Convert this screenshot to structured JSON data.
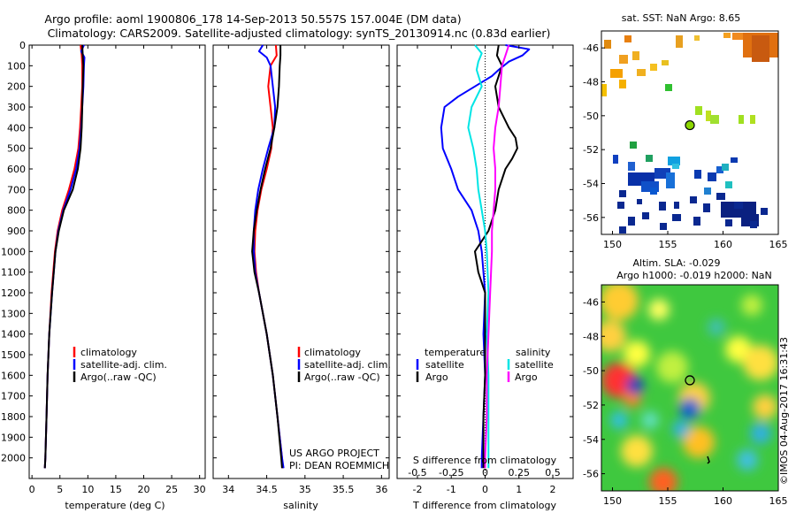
{
  "header": {
    "line1": "Argo profile: aoml 1900806_178 14-Sep-2013 50.557S 157.004E (DM data)",
    "line2": "Climatology: CARS2009. Satellite-adjusted climatology: synTS_20130914.nc (0.83d earlier)"
  },
  "credit": {
    "project": "US ARGO PROJECT",
    "pi": "PI: DEAN ROEMMICH",
    "timestamp": "©IMOS 04-Aug-2017 16:31:43"
  },
  "colors": {
    "climatology": "#ff0000",
    "satellite": "#0000ff",
    "argo": "#000000",
    "s_satellite": "#00e5e5",
    "s_argo": "#ff00ff"
  },
  "chart_data": [
    {
      "id": "temperature",
      "type": "line",
      "xlabel": "temperature (deg C)",
      "ylabel": "",
      "xlim": [
        -0.5,
        31
      ],
      "ylim": [
        2100,
        0
      ],
      "xticks": [
        0,
        5,
        10,
        15,
        20,
        25,
        30
      ],
      "yticks": [
        0,
        100,
        200,
        300,
        400,
        500,
        600,
        700,
        800,
        900,
        1000,
        1100,
        1200,
        1300,
        1400,
        1500,
        1600,
        1700,
        1800,
        1900,
        2000
      ],
      "legend": [
        "climatology",
        "satellite-adj. clim.",
        "Argo(..raw -QC)"
      ],
      "series": [
        {
          "name": "climatology",
          "color": "#ff0000",
          "depth": [
            0,
            50,
            100,
            200,
            300,
            400,
            500,
            600,
            700,
            800,
            900,
            1000,
            1200,
            1400,
            1600,
            1800,
            2000,
            2050
          ],
          "values": [
            8.7,
            8.9,
            9.0,
            9.0,
            8.8,
            8.6,
            8.3,
            7.6,
            6.6,
            5.4,
            4.6,
            4.1,
            3.5,
            3.1,
            2.8,
            2.6,
            2.4,
            2.3
          ]
        },
        {
          "name": "satellite",
          "color": "#0000ff",
          "depth": [
            0,
            30,
            60,
            100,
            200,
            300,
            400,
            500,
            600,
            700,
            800,
            900,
            1000,
            1200,
            1400,
            1600,
            1800,
            2000,
            2050
          ],
          "values": [
            9.3,
            8.8,
            9.4,
            9.3,
            9.2,
            9.0,
            8.8,
            8.5,
            7.9,
            6.9,
            5.6,
            4.7,
            4.2,
            3.6,
            3.1,
            2.8,
            2.6,
            2.4,
            2.3
          ]
        },
        {
          "name": "argo",
          "color": "#000000",
          "depth": [
            0,
            50,
            100,
            200,
            300,
            400,
            500,
            600,
            700,
            800,
            900,
            1000,
            1200,
            1400,
            1600,
            1800,
            2000,
            2050
          ],
          "values": [
            9.0,
            9.1,
            9.2,
            9.1,
            9.0,
            8.9,
            8.7,
            8.2,
            7.3,
            5.7,
            4.8,
            4.2,
            3.6,
            3.1,
            2.8,
            2.6,
            2.4,
            2.3
          ]
        }
      ]
    },
    {
      "id": "salinity",
      "type": "line",
      "xlabel": "salinity",
      "ylabel": "",
      "xlim": [
        33.8,
        36.1
      ],
      "ylim": [
        2100,
        0
      ],
      "xticks": [
        34,
        34.5,
        35,
        35.5,
        36
      ],
      "legend": [
        "climatology",
        "satellite-adj. clim.",
        "Argo(..raw -QC)"
      ],
      "series": [
        {
          "name": "climatology",
          "color": "#ff0000",
          "depth": [
            0,
            50,
            100,
            200,
            300,
            400,
            500,
            600,
            700,
            800,
            900,
            1000,
            1100,
            1200,
            1400,
            1600,
            1800,
            2000,
            2050
          ],
          "values": [
            34.62,
            34.63,
            34.55,
            34.52,
            34.55,
            34.58,
            34.56,
            34.5,
            34.43,
            34.38,
            34.35,
            34.34,
            34.36,
            34.4,
            34.5,
            34.58,
            34.64,
            34.7,
            34.71
          ]
        },
        {
          "name": "satellite",
          "color": "#0000ff",
          "depth": [
            0,
            30,
            60,
            100,
            200,
            300,
            400,
            500,
            600,
            700,
            800,
            900,
            1000,
            1100,
            1200,
            1400,
            1600,
            1800,
            2000,
            2050
          ],
          "values": [
            34.45,
            34.4,
            34.5,
            34.55,
            34.58,
            34.61,
            34.6,
            34.52,
            34.45,
            34.39,
            34.35,
            34.33,
            34.33,
            34.35,
            34.4,
            34.5,
            34.58,
            34.64,
            34.7,
            34.72
          ]
        },
        {
          "name": "argo",
          "color": "#000000",
          "depth": [
            0,
            50,
            100,
            200,
            300,
            400,
            500,
            600,
            700,
            800,
            900,
            1000,
            1100,
            1200,
            1400,
            1600,
            1800,
            2000,
            2050
          ],
          "values": [
            34.68,
            34.68,
            34.67,
            34.66,
            34.64,
            34.6,
            34.55,
            34.48,
            34.42,
            34.37,
            34.33,
            34.31,
            34.34,
            34.4,
            34.5,
            34.58,
            34.64,
            34.69,
            34.7
          ]
        }
      ]
    },
    {
      "id": "differences",
      "type": "line",
      "xlabel_bottom": "T difference from climatology",
      "xlabel_top": "S difference from climatology",
      "xlim": [
        -2.6,
        2.6
      ],
      "ylim": [
        2100,
        0
      ],
      "xticks_bottom": [
        -2,
        -1,
        0,
        1,
        2
      ],
      "xticks_top_labels": [
        "-0.5",
        "-0.25",
        "0",
        "0.25",
        "0.5"
      ],
      "xticks_top_values": [
        -2,
        -1,
        0,
        1,
        2
      ],
      "legend_temperature": {
        "title": "temperature",
        "items": [
          "satellite",
          "Argo"
        ]
      },
      "legend_salinity": {
        "title": "salinity",
        "items": [
          "satellite",
          "Argo"
        ]
      },
      "series": [
        {
          "name": "T satellite",
          "color": "#0000ff",
          "depth": [
            0,
            20,
            50,
            80,
            120,
            150,
            200,
            250,
            300,
            400,
            500,
            600,
            700,
            800,
            900,
            1000,
            1200,
            1400,
            1600,
            1800,
            2000,
            2050
          ],
          "values": [
            0.6,
            1.3,
            1.1,
            0.7,
            0.4,
            0.2,
            -0.3,
            -0.8,
            -1.2,
            -1.3,
            -1.25,
            -1.0,
            -0.8,
            -0.4,
            -0.2,
            -0.1,
            0,
            -0.05,
            0,
            -0.05,
            -0.1,
            -0.1
          ]
        },
        {
          "name": "T Argo",
          "color": "#000000",
          "depth": [
            0,
            50,
            100,
            150,
            200,
            300,
            400,
            450,
            500,
            550,
            600,
            700,
            800,
            900,
            1000,
            1100,
            1200,
            1400,
            1600,
            1800,
            2000,
            2050
          ],
          "values": [
            0.4,
            0.35,
            0.5,
            0.4,
            0.3,
            0.4,
            0.7,
            0.9,
            0.95,
            0.8,
            0.6,
            0.4,
            0.3,
            0.1,
            -0.3,
            -0.2,
            0,
            0,
            0,
            -0.05,
            -0.05,
            -0.05
          ]
        },
        {
          "name": "S satellite",
          "color": "#00e5e5",
          "depth": [
            0,
            40,
            80,
            120,
            200,
            300,
            400,
            500,
            600,
            700,
            800,
            900,
            1000,
            1200,
            1400,
            1600,
            1800,
            2000,
            2050
          ],
          "values": [
            -0.3,
            -0.1,
            -0.2,
            -0.25,
            -0.1,
            -0.4,
            -0.5,
            -0.35,
            -0.25,
            -0.2,
            -0.1,
            0,
            0.05,
            0.1,
            0.05,
            0.1,
            0.1,
            0.1,
            0.1
          ]
        },
        {
          "name": "S Argo",
          "color": "#ff00ff",
          "depth": [
            0,
            50,
            100,
            200,
            300,
            400,
            500,
            600,
            700,
            800,
            900,
            1000,
            1200,
            1400,
            1600,
            1800,
            2000,
            2050
          ],
          "values": [
            0.7,
            0.6,
            0.5,
            0.45,
            0.4,
            0.3,
            0.25,
            0.3,
            0.3,
            0.25,
            0.2,
            0.2,
            0.15,
            0.1,
            0.05,
            0.05,
            0,
            0
          ]
        }
      ]
    },
    {
      "id": "sst_map",
      "type": "heatmap",
      "title": "sat. SST: NaN Argo: 8.65",
      "xlim": [
        149,
        165
      ],
      "ylim": [
        -57,
        -45
      ],
      "xticks": [
        150,
        155,
        160,
        165
      ],
      "yticks": [
        -46,
        -48,
        -50,
        -52,
        -54,
        -56
      ],
      "argo_position": {
        "lon": 157.0,
        "lat": -50.56
      }
    },
    {
      "id": "sla_map",
      "type": "heatmap",
      "title": "Altim. SLA: -0.029",
      "subtitle": "Argo h1000: -0.019 h2000: NaN",
      "xlim": [
        149,
        165
      ],
      "ylim": [
        -57,
        -45
      ],
      "xticks": [
        150,
        155,
        160,
        165
      ],
      "yticks": [
        -46,
        -48,
        -50,
        -52,
        -54,
        -56
      ],
      "argo_position": {
        "lon": 157.0,
        "lat": -50.56
      }
    }
  ]
}
